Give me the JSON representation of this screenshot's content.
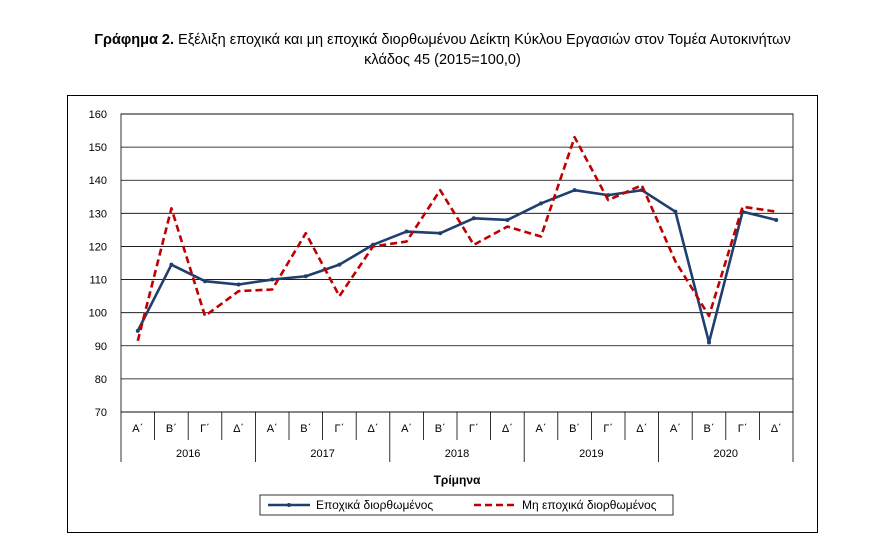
{
  "title": {
    "lead": "Γράφημα 2.",
    "line1": "Εξέλιξη εποχικά και μη εποχικά διορθωμένου Δείκτη Κύκλου Εργασιών στον Τομέα Αυτοκινήτων",
    "line2": "κλάδος 45 (2015=100,0)"
  },
  "chart_data": {
    "type": "line",
    "xlabel": "Τρίμηνα",
    "ylabel": "",
    "ylim": [
      70,
      160
    ],
    "yticks": [
      70,
      80,
      90,
      100,
      110,
      120,
      130,
      140,
      150,
      160
    ],
    "grid": true,
    "legend_position": "bottom",
    "x": [
      "Α΄",
      "Β΄",
      "Γ΄",
      "Δ΄",
      "Α΄",
      "Β΄",
      "Γ΄",
      "Δ΄",
      "Α΄",
      "Β΄",
      "Γ΄",
      "Δ΄",
      "Α΄",
      "Β΄",
      "Γ΄",
      "Δ΄",
      "Α΄",
      "Β΄",
      "Γ΄",
      "Δ΄"
    ],
    "years": [
      "2016",
      "2017",
      "2018",
      "2019",
      "2020"
    ],
    "series": [
      {
        "name": "Εποχικά διορθωμένος",
        "color": "#1f3f6e",
        "style": "solid",
        "values": [
          94.5,
          114.5,
          109.5,
          108.5,
          110,
          111,
          114.5,
          120.5,
          124.5,
          124,
          128.5,
          128,
          133,
          137,
          135.5,
          137,
          130.5,
          91,
          130.5,
          128
        ]
      },
      {
        "name": "Μη εποχικά διορθωμένος",
        "color": "#c00000",
        "style": "dashed",
        "values": [
          91.5,
          131.5,
          99,
          106.5,
          107,
          124,
          105,
          120,
          121.5,
          137,
          120.5,
          126,
          123,
          153,
          134,
          138.5,
          115.5,
          99,
          132,
          130.5
        ]
      }
    ]
  }
}
